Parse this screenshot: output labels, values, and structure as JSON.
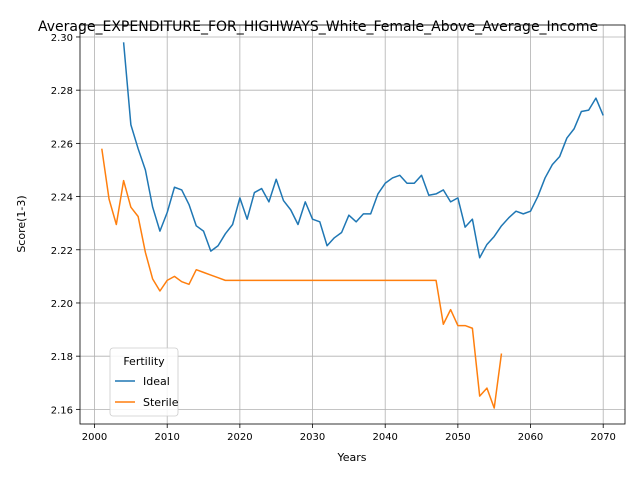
{
  "chart_data": {
    "type": "line",
    "title": "Average_EXPENDITURE_FOR_HIGHWAYS_White_Female_Above_Average_Income",
    "xlabel": "Years",
    "ylabel": "Score(1-3)",
    "xlim": [
      1998,
      2073
    ],
    "ylim": [
      2.1545,
      2.3045
    ],
    "xticks": [
      2000,
      2010,
      2020,
      2030,
      2040,
      2050,
      2060,
      2070
    ],
    "yticks": [
      2.16,
      2.18,
      2.2,
      2.22,
      2.24,
      2.26,
      2.28,
      2.3
    ],
    "ytick_labels": [
      "2.16",
      "2.18",
      "2.20",
      "2.22",
      "2.24",
      "2.26",
      "2.28",
      "2.30"
    ],
    "grid": true,
    "legend": {
      "title": "Fertility",
      "position": "lower-left"
    },
    "series": [
      {
        "name": "Ideal",
        "color": "#1f77b4",
        "x": [
          2004,
          2005,
          2006,
          2007,
          2008,
          2009,
          2010,
          2011,
          2012,
          2013,
          2014,
          2015,
          2016,
          2017,
          2018,
          2019,
          2020,
          2021,
          2022,
          2023,
          2024,
          2025,
          2026,
          2027,
          2028,
          2029,
          2030,
          2031,
          2032,
          2033,
          2034,
          2035,
          2036,
          2037,
          2038,
          2039,
          2040,
          2041,
          2042,
          2043,
          2044,
          2045,
          2046,
          2047,
          2048,
          2049,
          2050,
          2051,
          2052,
          2053,
          2054,
          2055,
          2056,
          2057,
          2058,
          2059,
          2060,
          2061,
          2062,
          2063,
          2064,
          2065,
          2066,
          2067,
          2068,
          2069,
          2070
        ],
        "y": [
          2.298,
          2.267,
          2.258,
          2.25,
          2.236,
          2.227,
          2.234,
          2.2435,
          2.2425,
          2.237,
          2.229,
          2.227,
          2.2195,
          2.2215,
          2.226,
          2.2295,
          2.2395,
          2.2315,
          2.2415,
          2.243,
          2.238,
          2.2465,
          2.2385,
          2.235,
          2.2295,
          2.238,
          2.2315,
          2.2305,
          2.2215,
          2.2245,
          2.2265,
          2.233,
          2.2305,
          2.2335,
          2.2335,
          2.241,
          2.245,
          2.247,
          2.248,
          2.245,
          2.245,
          2.248,
          2.2405,
          2.241,
          2.2425,
          2.238,
          2.2395,
          2.2285,
          2.2315,
          2.217,
          2.222,
          2.225,
          2.229,
          2.232,
          2.2345,
          2.2335,
          2.2345,
          2.24,
          2.247,
          2.252,
          2.255,
          2.262,
          2.2655,
          2.272,
          2.2725,
          2.277,
          2.2705
        ]
      },
      {
        "name": "Sterile",
        "color": "#ff7f0e",
        "x": [
          2001,
          2002,
          2003,
          2004,
          2005,
          2006,
          2007,
          2008,
          2009,
          2010,
          2011,
          2012,
          2013,
          2014,
          2015,
          2016,
          2017,
          2018,
          2019,
          2020,
          2021,
          2022,
          2023,
          2024,
          2025,
          2026,
          2027,
          2028,
          2029,
          2030,
          2031,
          2032,
          2033,
          2034,
          2035,
          2036,
          2037,
          2038,
          2039,
          2040,
          2041,
          2042,
          2043,
          2044,
          2045,
          2046,
          2047,
          2048,
          2049,
          2050,
          2051,
          2052,
          2053,
          2054,
          2055,
          2056
        ],
        "y": [
          2.258,
          2.239,
          2.2295,
          2.246,
          2.236,
          2.2325,
          2.219,
          2.209,
          2.2045,
          2.2085,
          2.21,
          2.208,
          2.207,
          2.2125,
          2.2115,
          2.2105,
          2.2095,
          2.2085,
          2.2085,
          2.2085,
          2.2085,
          2.2085,
          2.2085,
          2.2085,
          2.2085,
          2.2085,
          2.2085,
          2.2085,
          2.2085,
          2.2085,
          2.2085,
          2.2085,
          2.2085,
          2.2085,
          2.2085,
          2.2085,
          2.2085,
          2.2085,
          2.2085,
          2.2085,
          2.2085,
          2.2085,
          2.2085,
          2.2085,
          2.2085,
          2.2085,
          2.2085,
          2.192,
          2.1975,
          2.1915,
          2.1915,
          2.1905,
          2.165,
          2.168,
          2.1605,
          2.181
        ]
      }
    ]
  }
}
